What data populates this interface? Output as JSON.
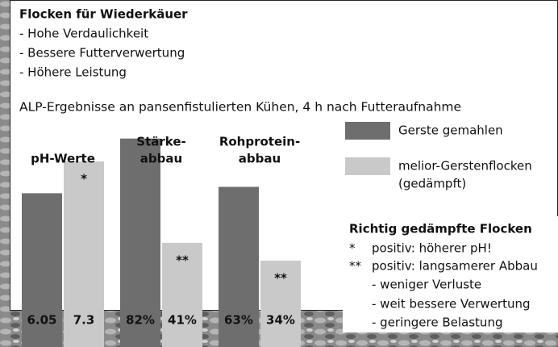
{
  "header": {
    "title": "Flocken für Wiederkäuer",
    "points": [
      "- Hohe Verdaulichkeit",
      "- Bessere Futterverwertung",
      "- Höhere Leistung"
    ]
  },
  "subtitle": "ALP-Ergebnisse an pansenfistulierten Kühen, 4 h nach Futteraufnahme",
  "legend": {
    "items": [
      {
        "name_lines": [
          "Gerste gemahlen"
        ],
        "color": "#6e6e6e"
      },
      {
        "name_lines": [
          "melior-Gerstenflocken",
          "(gedämpft)"
        ],
        "color": "#c9c9c9"
      }
    ]
  },
  "chart_data": [
    {
      "type": "bar",
      "title": [
        "pH-Werte"
      ],
      "values": [
        6.05,
        7.3
      ],
      "annotations": [
        null,
        "*"
      ],
      "ylim": [
        0,
        10
      ]
    },
    {
      "type": "bar",
      "title": [
        "Stärke-",
        "abbau"
      ],
      "values": [
        82,
        41
      ],
      "value_labels": [
        "82%",
        "41%"
      ],
      "annotations": [
        null,
        "**"
      ],
      "ylim": [
        0,
        100
      ]
    },
    {
      "type": "bar",
      "title": [
        "Rohprotein-",
        "abbau"
      ],
      "values": [
        63,
        34
      ],
      "value_labels": [
        "63%",
        "34%"
      ],
      "annotations": [
        null,
        "**"
      ],
      "ylim": [
        0,
        100
      ]
    }
  ],
  "notes": {
    "title": "Richtig gedämpfte Flocken",
    "items": [
      {
        "marker": "*",
        "text": "positiv: höherer pH!"
      },
      {
        "marker": "**",
        "text": "positiv: langsamerer Abbau"
      }
    ],
    "subitems": [
      "- weniger Verluste",
      "- weit bessere Verwertung",
      "- geringere Belastung"
    ]
  }
}
